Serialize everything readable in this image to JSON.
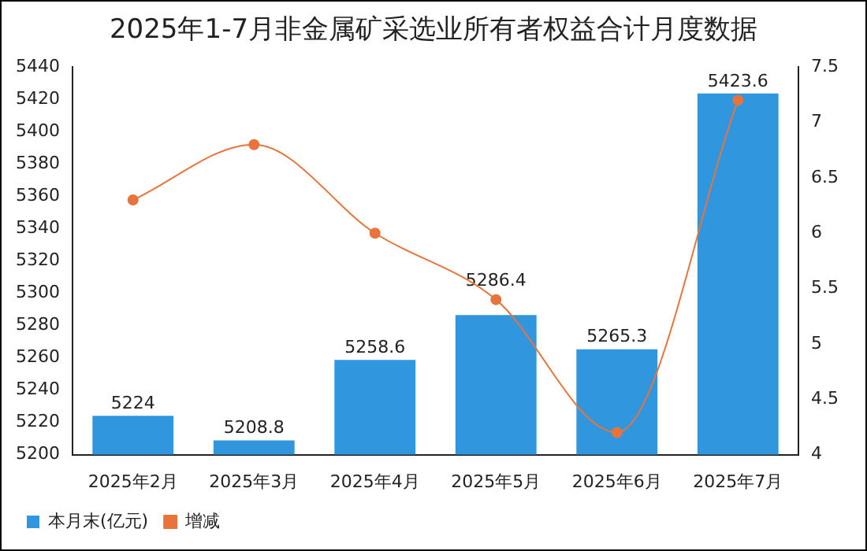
{
  "chart_data": {
    "type": "bar",
    "title": "2025年1-7月非金属矿采选业所有者权益合计月度数据",
    "categories": [
      "2025年2月",
      "2025年3月",
      "2025年4月",
      "2025年5月",
      "2025年6月",
      "2025年7月"
    ],
    "series": [
      {
        "name": "本月末(亿元)",
        "color": "#3096dd",
        "values": [
          5224,
          5208.8,
          5258.6,
          5286.4,
          5265.3,
          5423.6
        ],
        "value_labels": [
          "5224",
          "5208.8",
          "5258.6",
          "5286.4",
          "5265.3",
          "5423.6"
        ]
      },
      {
        "name": "增减",
        "type": "line",
        "axis": "y2",
        "color": "#e8743b",
        "marker": "circle",
        "values": [
          6.3,
          6.8,
          6.0,
          5.4,
          4.2,
          7.2
        ]
      }
    ],
    "ylim": [
      5200,
      5440
    ],
    "yticks": [
      5200,
      5220,
      5240,
      5260,
      5280,
      5300,
      5320,
      5340,
      5360,
      5380,
      5400,
      5420,
      5440
    ],
    "y2lim": [
      4,
      7.5
    ],
    "y2ticks": [
      4,
      4.5,
      5,
      5.5,
      6,
      6.5,
      7,
      7.5
    ],
    "grid": false,
    "legend": "bottom left"
  }
}
